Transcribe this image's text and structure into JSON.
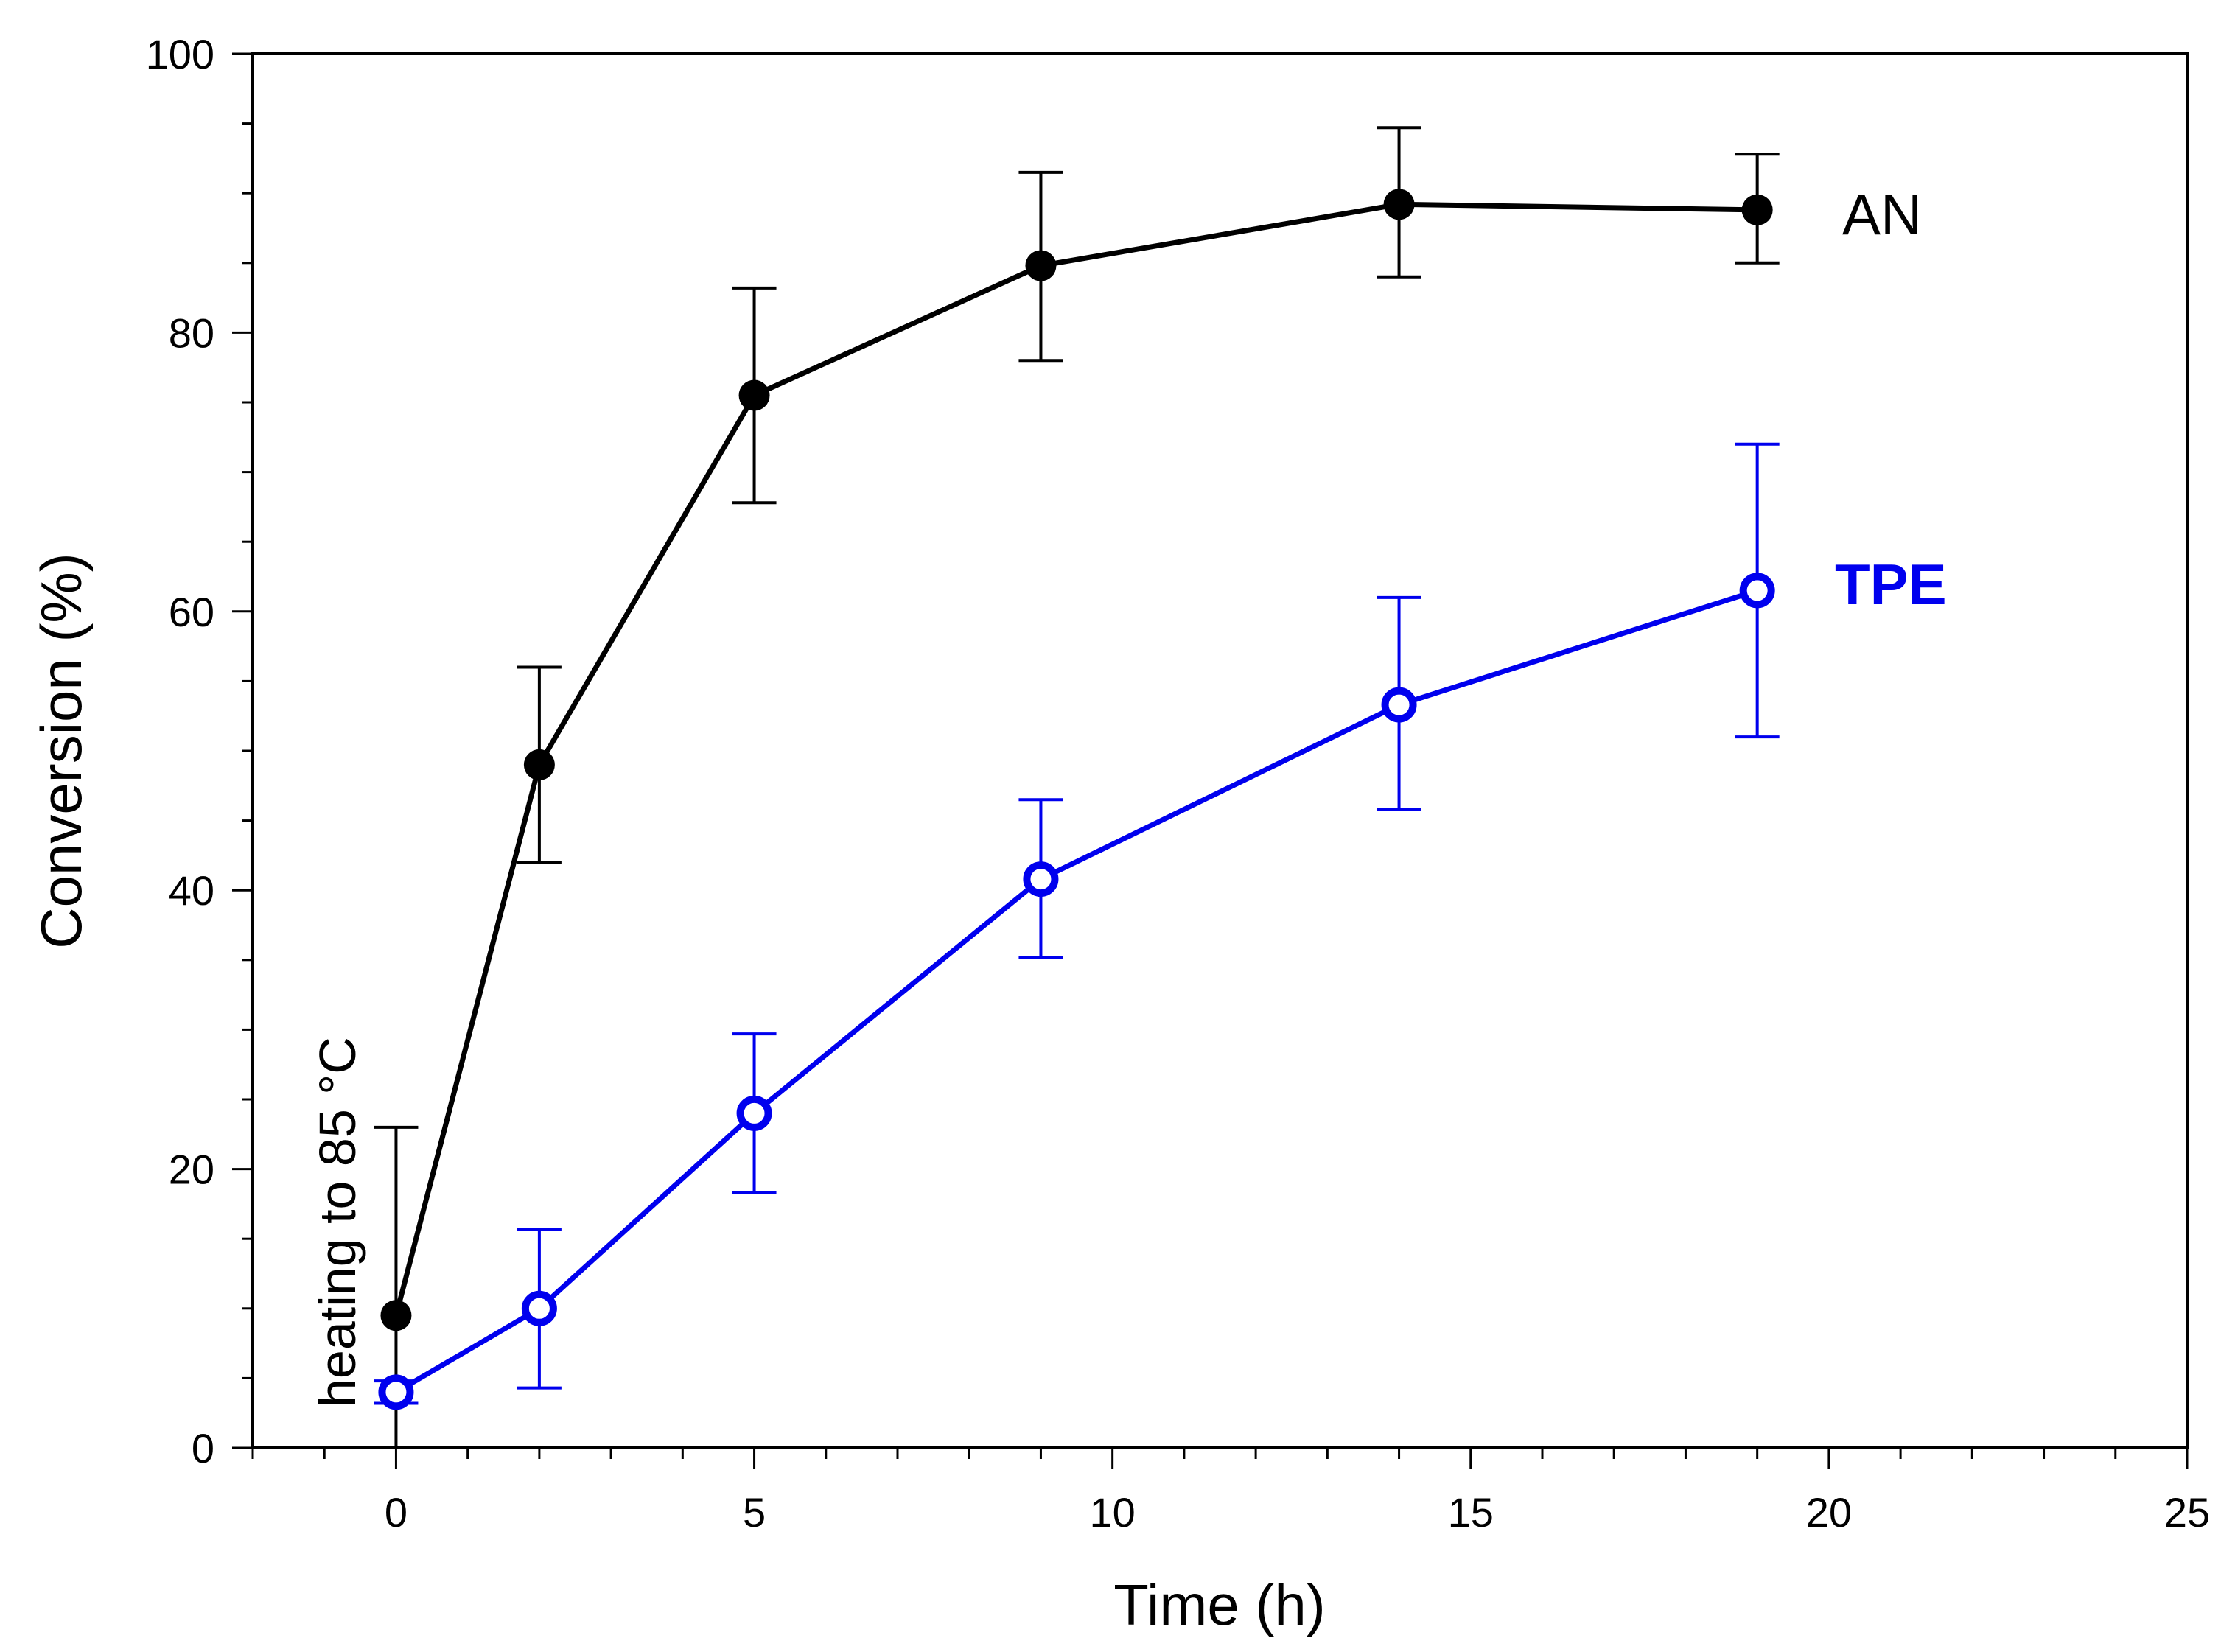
{
  "chart_data": {
    "type": "line",
    "xlabel": "Time (h)",
    "ylabel": "Conversion (%)",
    "xlim": [
      -2,
      25
    ],
    "ylim": [
      0,
      100
    ],
    "x_major_ticks": [
      0,
      5,
      10,
      15,
      20,
      25
    ],
    "x_minor_step": 1,
    "y_major_ticks": [
      0,
      20,
      40,
      60,
      80,
      100
    ],
    "y_minor_step": 5,
    "grid": false,
    "series": [
      {
        "name": "AN",
        "color": "#000000",
        "marker": "filled-circle",
        "label_bold": false,
        "x": [
          0,
          2,
          5,
          9,
          14,
          19
        ],
        "y": [
          9.5,
          49,
          75.5,
          84.8,
          89.2,
          88.8
        ],
        "err_low": [
          0,
          42,
          67.8,
          78,
          84,
          85
        ],
        "err_high": [
          23,
          56,
          83.2,
          91.5,
          94.7,
          92.8
        ]
      },
      {
        "name": "TPE",
        "color": "#0000ee",
        "marker": "open-circle",
        "label_bold": true,
        "x": [
          0,
          2,
          5,
          9,
          14,
          19
        ],
        "y": [
          4,
          10,
          24,
          40.8,
          53.3,
          61.5
        ],
        "err_low": [
          3.2,
          4.3,
          18.3,
          35.2,
          45.8,
          51
        ],
        "err_high": [
          4.8,
          15.7,
          29.7,
          46.5,
          61,
          72
        ]
      }
    ],
    "annotations": [
      {
        "text": "heating to 85 °C",
        "x": 0,
        "y": 0,
        "rotation": -90
      }
    ]
  }
}
